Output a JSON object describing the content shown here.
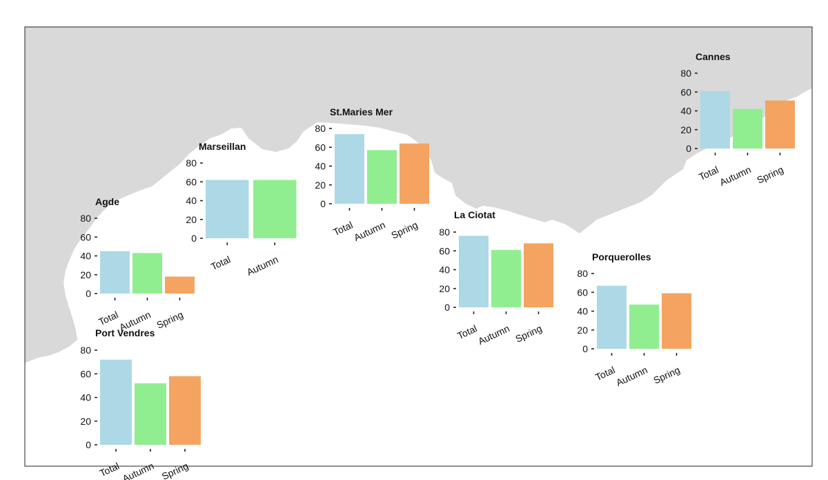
{
  "chart_data": [
    {
      "type": "bar",
      "title": "Cannes",
      "categories": [
        "Total",
        "Autumn",
        "Spring"
      ],
      "values": [
        61,
        42,
        51
      ],
      "ylim": [
        0,
        80
      ],
      "yticks": [
        0,
        20,
        40,
        60,
        80
      ]
    },
    {
      "type": "bar",
      "title": "St.Maries Mer",
      "categories": [
        "Total",
        "Autumn",
        "Spring"
      ],
      "values": [
        74,
        57,
        64
      ],
      "ylim": [
        0,
        80
      ],
      "yticks": [
        0,
        20,
        40,
        60,
        80
      ]
    },
    {
      "type": "bar",
      "title": "Marseillan",
      "categories": [
        "Total",
        "Autumn"
      ],
      "values": [
        62,
        62
      ],
      "ylim": [
        0,
        80
      ],
      "yticks": [
        0,
        20,
        40,
        60,
        80
      ]
    },
    {
      "type": "bar",
      "title": "Agde",
      "categories": [
        "Total",
        "Autumn",
        "Spring"
      ],
      "values": [
        45,
        43,
        18
      ],
      "ylim": [
        0,
        80
      ],
      "yticks": [
        0,
        20,
        40,
        60,
        80
      ]
    },
    {
      "type": "bar",
      "title": "La Ciotat",
      "categories": [
        "Total",
        "Autumn",
        "Spring"
      ],
      "values": [
        76,
        61,
        68
      ],
      "ylim": [
        0,
        80
      ],
      "yticks": [
        0,
        20,
        40,
        60,
        80
      ]
    },
    {
      "type": "bar",
      "title": "Porquerolles",
      "categories": [
        "Total",
        "Autumn",
        "Spring"
      ],
      "values": [
        67,
        47,
        59
      ],
      "ylim": [
        0,
        80
      ],
      "yticks": [
        0,
        20,
        40,
        60,
        80
      ]
    },
    {
      "type": "bar",
      "title": "Port Vendres",
      "categories": [
        "Total",
        "Autumn",
        "Spring"
      ],
      "values": [
        72,
        52,
        58
      ],
      "ylim": [
        0,
        80
      ],
      "yticks": [
        0,
        20,
        40,
        60,
        80
      ]
    }
  ],
  "colors": {
    "Total": "#add8e6",
    "Autumn": "#90ee90",
    "Spring": "#f4a460",
    "land": "#d9d9d9",
    "sea": "#ffffff"
  }
}
